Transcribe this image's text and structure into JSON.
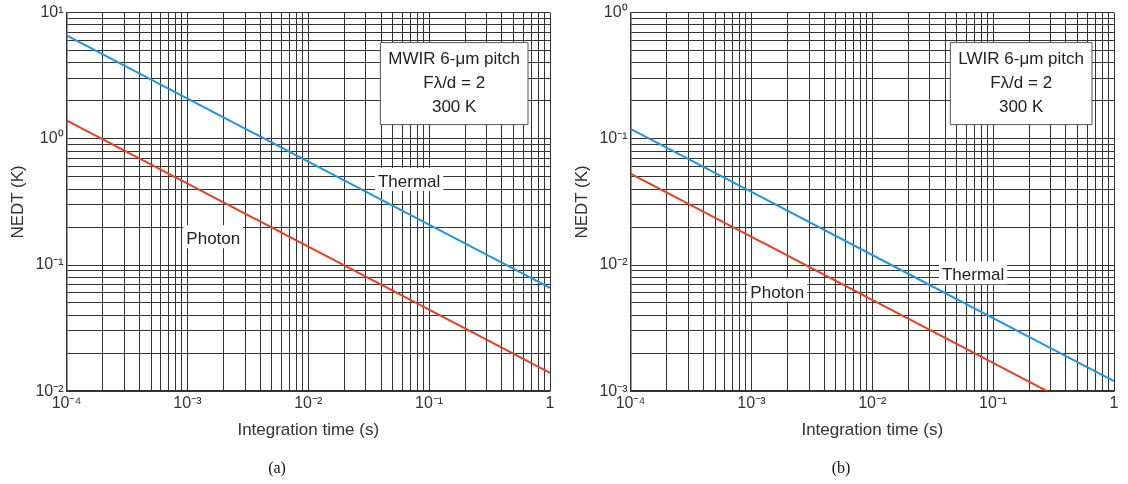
{
  "chart_data": [
    {
      "type": "line",
      "title": "(a)",
      "xlabel": "Integration time (s)",
      "ylabel": "NEDT (K)",
      "log": "xy",
      "grid": true,
      "legend": false,
      "marker": "none",
      "line_style": "solid",
      "annotations": [
        "MWIR 6-μm pitch",
        "Fλ/d = 2",
        "300 K"
      ],
      "x": [
        0.0001,
        0.01,
        1
      ],
      "series": [
        {
          "name": "Thermal",
          "color": "#2196e0",
          "values": [
            6.6,
            0.66,
            0.066
          ]
        },
        {
          "name": "Photon",
          "color": "#e8401c",
          "values": [
            1.4,
            0.14,
            0.014
          ]
        }
      ],
      "xlim": [
        0.0001,
        1
      ],
      "xticks": [
        {
          "value": 0.0001,
          "label": "10⁻⁴"
        },
        {
          "value": 0.0002,
          "label": null
        },
        {
          "value": 0.0003,
          "label": null
        },
        {
          "value": 0.0004,
          "label": null
        },
        {
          "value": 0.0005,
          "label": null
        },
        {
          "value": 0.0006,
          "label": null
        },
        {
          "value": 0.0007,
          "label": null
        },
        {
          "value": 0.0008,
          "label": null
        },
        {
          "value": 0.0009,
          "label": null
        },
        {
          "value": 0.001,
          "label": "10⁻³"
        },
        {
          "value": 0.002,
          "label": null
        },
        {
          "value": 0.003,
          "label": null
        },
        {
          "value": 0.004,
          "label": null
        },
        {
          "value": 0.005,
          "label": null
        },
        {
          "value": 0.006,
          "label": null
        },
        {
          "value": 0.007,
          "label": null
        },
        {
          "value": 0.008,
          "label": null
        },
        {
          "value": 0.009,
          "label": null
        },
        {
          "value": 0.01,
          "label": "10⁻²"
        },
        {
          "value": 0.02,
          "label": null
        },
        {
          "value": 0.03,
          "label": null
        },
        {
          "value": 0.04,
          "label": null
        },
        {
          "value": 0.05,
          "label": null
        },
        {
          "value": 0.06,
          "label": null
        },
        {
          "value": 0.07,
          "label": null
        },
        {
          "value": 0.08,
          "label": null
        },
        {
          "value": 0.09,
          "label": null
        },
        {
          "value": 0.1,
          "label": "10⁻¹"
        },
        {
          "value": 0.2,
          "label": null
        },
        {
          "value": 0.3,
          "label": null
        },
        {
          "value": 0.4,
          "label": null
        },
        {
          "value": 0.5,
          "label": null
        },
        {
          "value": 0.6,
          "label": null
        },
        {
          "value": 0.7,
          "label": null
        },
        {
          "value": 0.8,
          "label": null
        },
        {
          "value": 0.9,
          "label": null
        },
        1
      ],
      "ylim": [
        0.01,
        10
      ],
      "yticks": [
        {
          "value": 0.01,
          "label": "10⁻²"
        },
        {
          "value": 0.02,
          "label": null
        },
        {
          "value": 0.03,
          "label": null
        },
        {
          "value": 0.04,
          "label": null
        },
        {
          "value": 0.05,
          "label": null
        },
        {
          "value": 0.06,
          "label": null
        },
        {
          "value": 0.07,
          "label": null
        },
        {
          "value": 0.08,
          "label": null
        },
        {
          "value": 0.09,
          "label": null
        },
        {
          "value": 0.1,
          "label": "10⁻¹"
        },
        {
          "value": 0.2,
          "label": null
        },
        {
          "value": 0.3,
          "label": null
        },
        {
          "value": 0.4,
          "label": null
        },
        {
          "value": 0.5,
          "label": null
        },
        {
          "value": 0.6,
          "label": null
        },
        {
          "value": 0.7,
          "label": null
        },
        {
          "value": 0.8,
          "label": null
        },
        {
          "value": 0.9,
          "label": null
        },
        {
          "value": 1,
          "label": "10⁰"
        },
        {
          "value": 2,
          "label": null
        },
        {
          "value": 3,
          "label": null
        },
        {
          "value": 4,
          "label": null
        },
        {
          "value": 5,
          "label": null
        },
        {
          "value": 6,
          "label": null
        },
        {
          "value": 7,
          "label": null
        },
        {
          "value": 8,
          "label": null
        },
        {
          "value": 9,
          "label": null
        },
        {
          "value": 10,
          "label": "10¹"
        }
      ]
    },
    {
      "type": "line",
      "title": "(b)",
      "xlabel": "Integration time (s)",
      "ylabel": "NEDT (K)",
      "log": "xy",
      "grid": true,
      "legend": false,
      "marker": "none",
      "line_style": "solid",
      "annotations": [
        "LWIR 6-μm pitch",
        "Fλ/d = 2",
        "300 K"
      ],
      "series": [
        {
          "name": "Thermal",
          "color": "#2196e0",
          "x": [
            0.0001,
            0.01,
            1
          ],
          "values": [
            0.12,
            0.012,
            0.0012
          ]
        },
        {
          "name": "Photon",
          "color": "#e8401c",
          "x": [
            0.0001,
            0.01,
            0.28
          ],
          "values": [
            0.053,
            0.0053,
            0.001
          ]
        }
      ],
      "xlim": [
        0.0001,
        1
      ],
      "xticks": [
        {
          "value": 0.0001,
          "label": "10⁻⁴"
        },
        {
          "value": 0.0002,
          "label": null
        },
        {
          "value": 0.0003,
          "label": null
        },
        {
          "value": 0.0004,
          "label": null
        },
        {
          "value": 0.0005,
          "label": null
        },
        {
          "value": 0.0006,
          "label": null
        },
        {
          "value": 0.0007,
          "label": null
        },
        {
          "value": 0.0008,
          "label": null
        },
        {
          "value": 0.0009,
          "label": null
        },
        {
          "value": 0.001,
          "label": "10⁻³"
        },
        {
          "value": 0.002,
          "label": null
        },
        {
          "value": 0.003,
          "label": null
        },
        {
          "value": 0.004,
          "label": null
        },
        {
          "value": 0.005,
          "label": null
        },
        {
          "value": 0.006,
          "label": null
        },
        {
          "value": 0.007,
          "label": null
        },
        {
          "value": 0.008,
          "label": null
        },
        {
          "value": 0.009,
          "label": null
        },
        {
          "value": 0.01,
          "label": "10⁻²"
        },
        {
          "value": 0.02,
          "label": null
        },
        {
          "value": 0.03,
          "label": null
        },
        {
          "value": 0.04,
          "label": null
        },
        {
          "value": 0.05,
          "label": null
        },
        {
          "value": 0.06,
          "label": null
        },
        {
          "value": 0.07,
          "label": null
        },
        {
          "value": 0.08,
          "label": null
        },
        {
          "value": 0.09,
          "label": null
        },
        {
          "value": 0.1,
          "label": "10⁻¹"
        },
        {
          "value": 0.2,
          "label": null
        },
        {
          "value": 0.3,
          "label": null
        },
        {
          "value": 0.4,
          "label": null
        },
        {
          "value": 0.5,
          "label": null
        },
        {
          "value": 0.6,
          "label": null
        },
        {
          "value": 0.7,
          "label": null
        },
        {
          "value": 0.8,
          "label": null
        },
        {
          "value": 0.9,
          "label": null
        },
        1
      ],
      "ylim": [
        0.001,
        1
      ],
      "yticks": [
        {
          "value": 0.001,
          "label": "10⁻³"
        },
        {
          "value": 0.002,
          "label": null
        },
        {
          "value": 0.003,
          "label": null
        },
        {
          "value": 0.004,
          "label": null
        },
        {
          "value": 0.005,
          "label": null
        },
        {
          "value": 0.006,
          "label": null
        },
        {
          "value": 0.007,
          "label": null
        },
        {
          "value": 0.008,
          "label": null
        },
        {
          "value": 0.009,
          "label": null
        },
        {
          "value": 0.01,
          "label": "10⁻²"
        },
        {
          "value": 0.02,
          "label": null
        },
        {
          "value": 0.03,
          "label": null
        },
        {
          "value": 0.04,
          "label": null
        },
        {
          "value": 0.05,
          "label": null
        },
        {
          "value": 0.06,
          "label": null
        },
        {
          "value": 0.07,
          "label": null
        },
        {
          "value": 0.08,
          "label": null
        },
        {
          "value": 0.09,
          "label": null
        },
        {
          "value": 0.1,
          "label": "10⁻¹"
        },
        {
          "value": 0.2,
          "label": null
        },
        {
          "value": 0.3,
          "label": null
        },
        {
          "value": 0.4,
          "label": null
        },
        {
          "value": 0.5,
          "label": null
        },
        {
          "value": 0.6,
          "label": null
        },
        {
          "value": 0.7,
          "label": null
        },
        {
          "value": 0.8,
          "label": null
        },
        {
          "value": 0.9,
          "label": null
        },
        {
          "value": 1,
          "label": "10⁰"
        }
      ]
    }
  ]
}
